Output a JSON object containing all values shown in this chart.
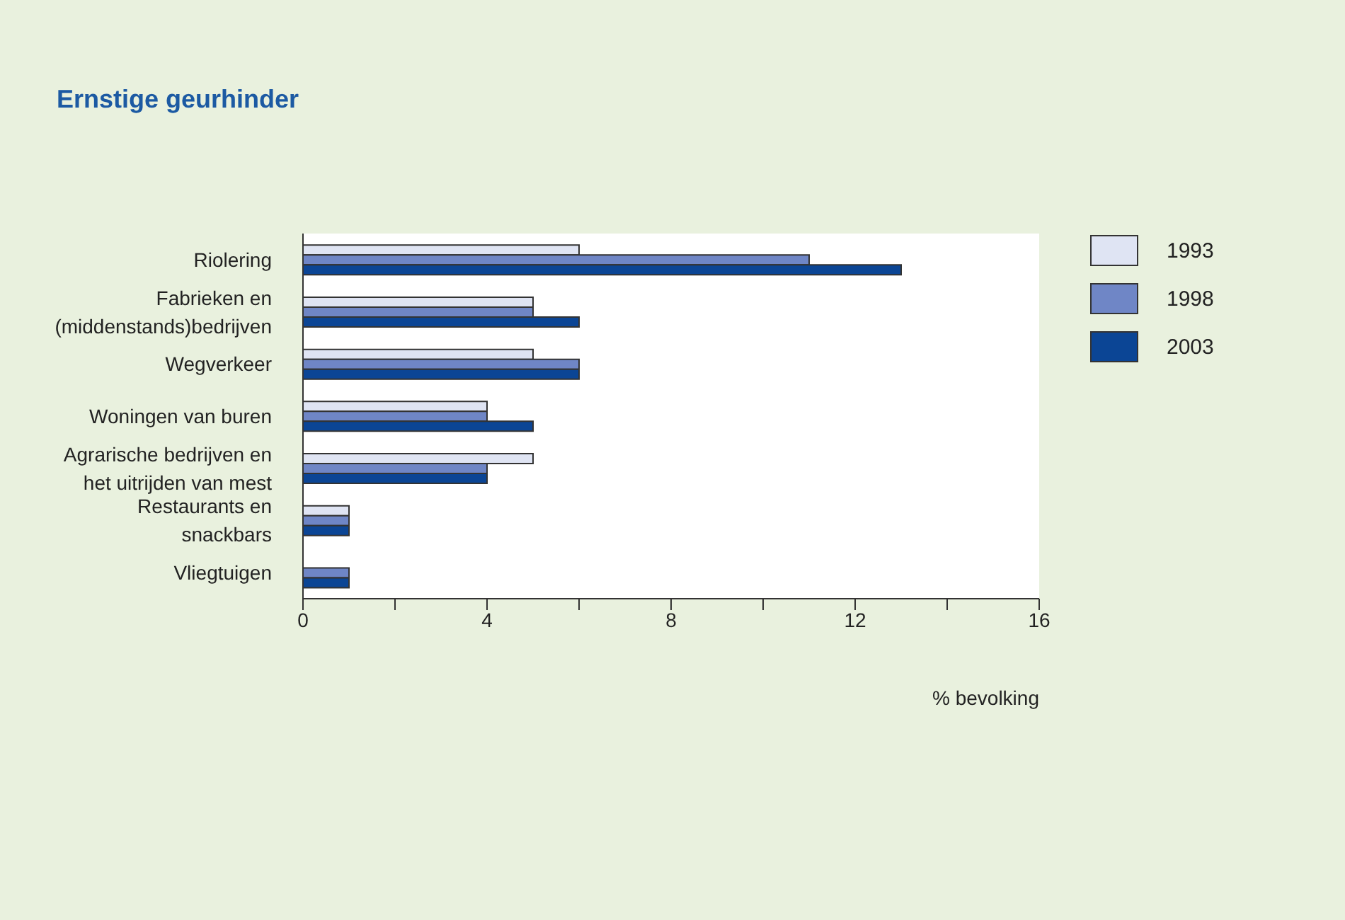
{
  "chart_data": {
    "type": "bar",
    "orientation": "horizontal",
    "title": "Ernstige geurhinder",
    "xlabel": "% bevolking",
    "categories": [
      "Riolering",
      "Fabrieken en (middenstands)bedrijven",
      "Wegverkeer",
      "Woningen van buren",
      "Agrarische bedrijven en het uitrijden van mest",
      "Restaurants en snackbars",
      "Vliegtuigen"
    ],
    "series": [
      {
        "name": "1993",
        "color": "#dfe4f3",
        "values": [
          6,
          5,
          5,
          4,
          5,
          1,
          null
        ]
      },
      {
        "name": "1998",
        "color": "#6f86c6",
        "values": [
          11,
          5,
          6,
          4,
          4,
          1,
          1
        ]
      },
      {
        "name": "2003",
        "color": "#0b4595",
        "values": [
          13,
          6,
          6,
          5,
          4,
          1,
          1
        ]
      }
    ],
    "xlim": [
      0,
      16
    ],
    "xticks": [
      0,
      {
        "value": 2,
        "label": null
      },
      4,
      {
        "value": 6,
        "label": null
      },
      8,
      {
        "value": 10,
        "label": null
      },
      12,
      {
        "value": 14,
        "label": null
      },
      16
    ],
    "grid": false,
    "legend": "top right"
  }
}
